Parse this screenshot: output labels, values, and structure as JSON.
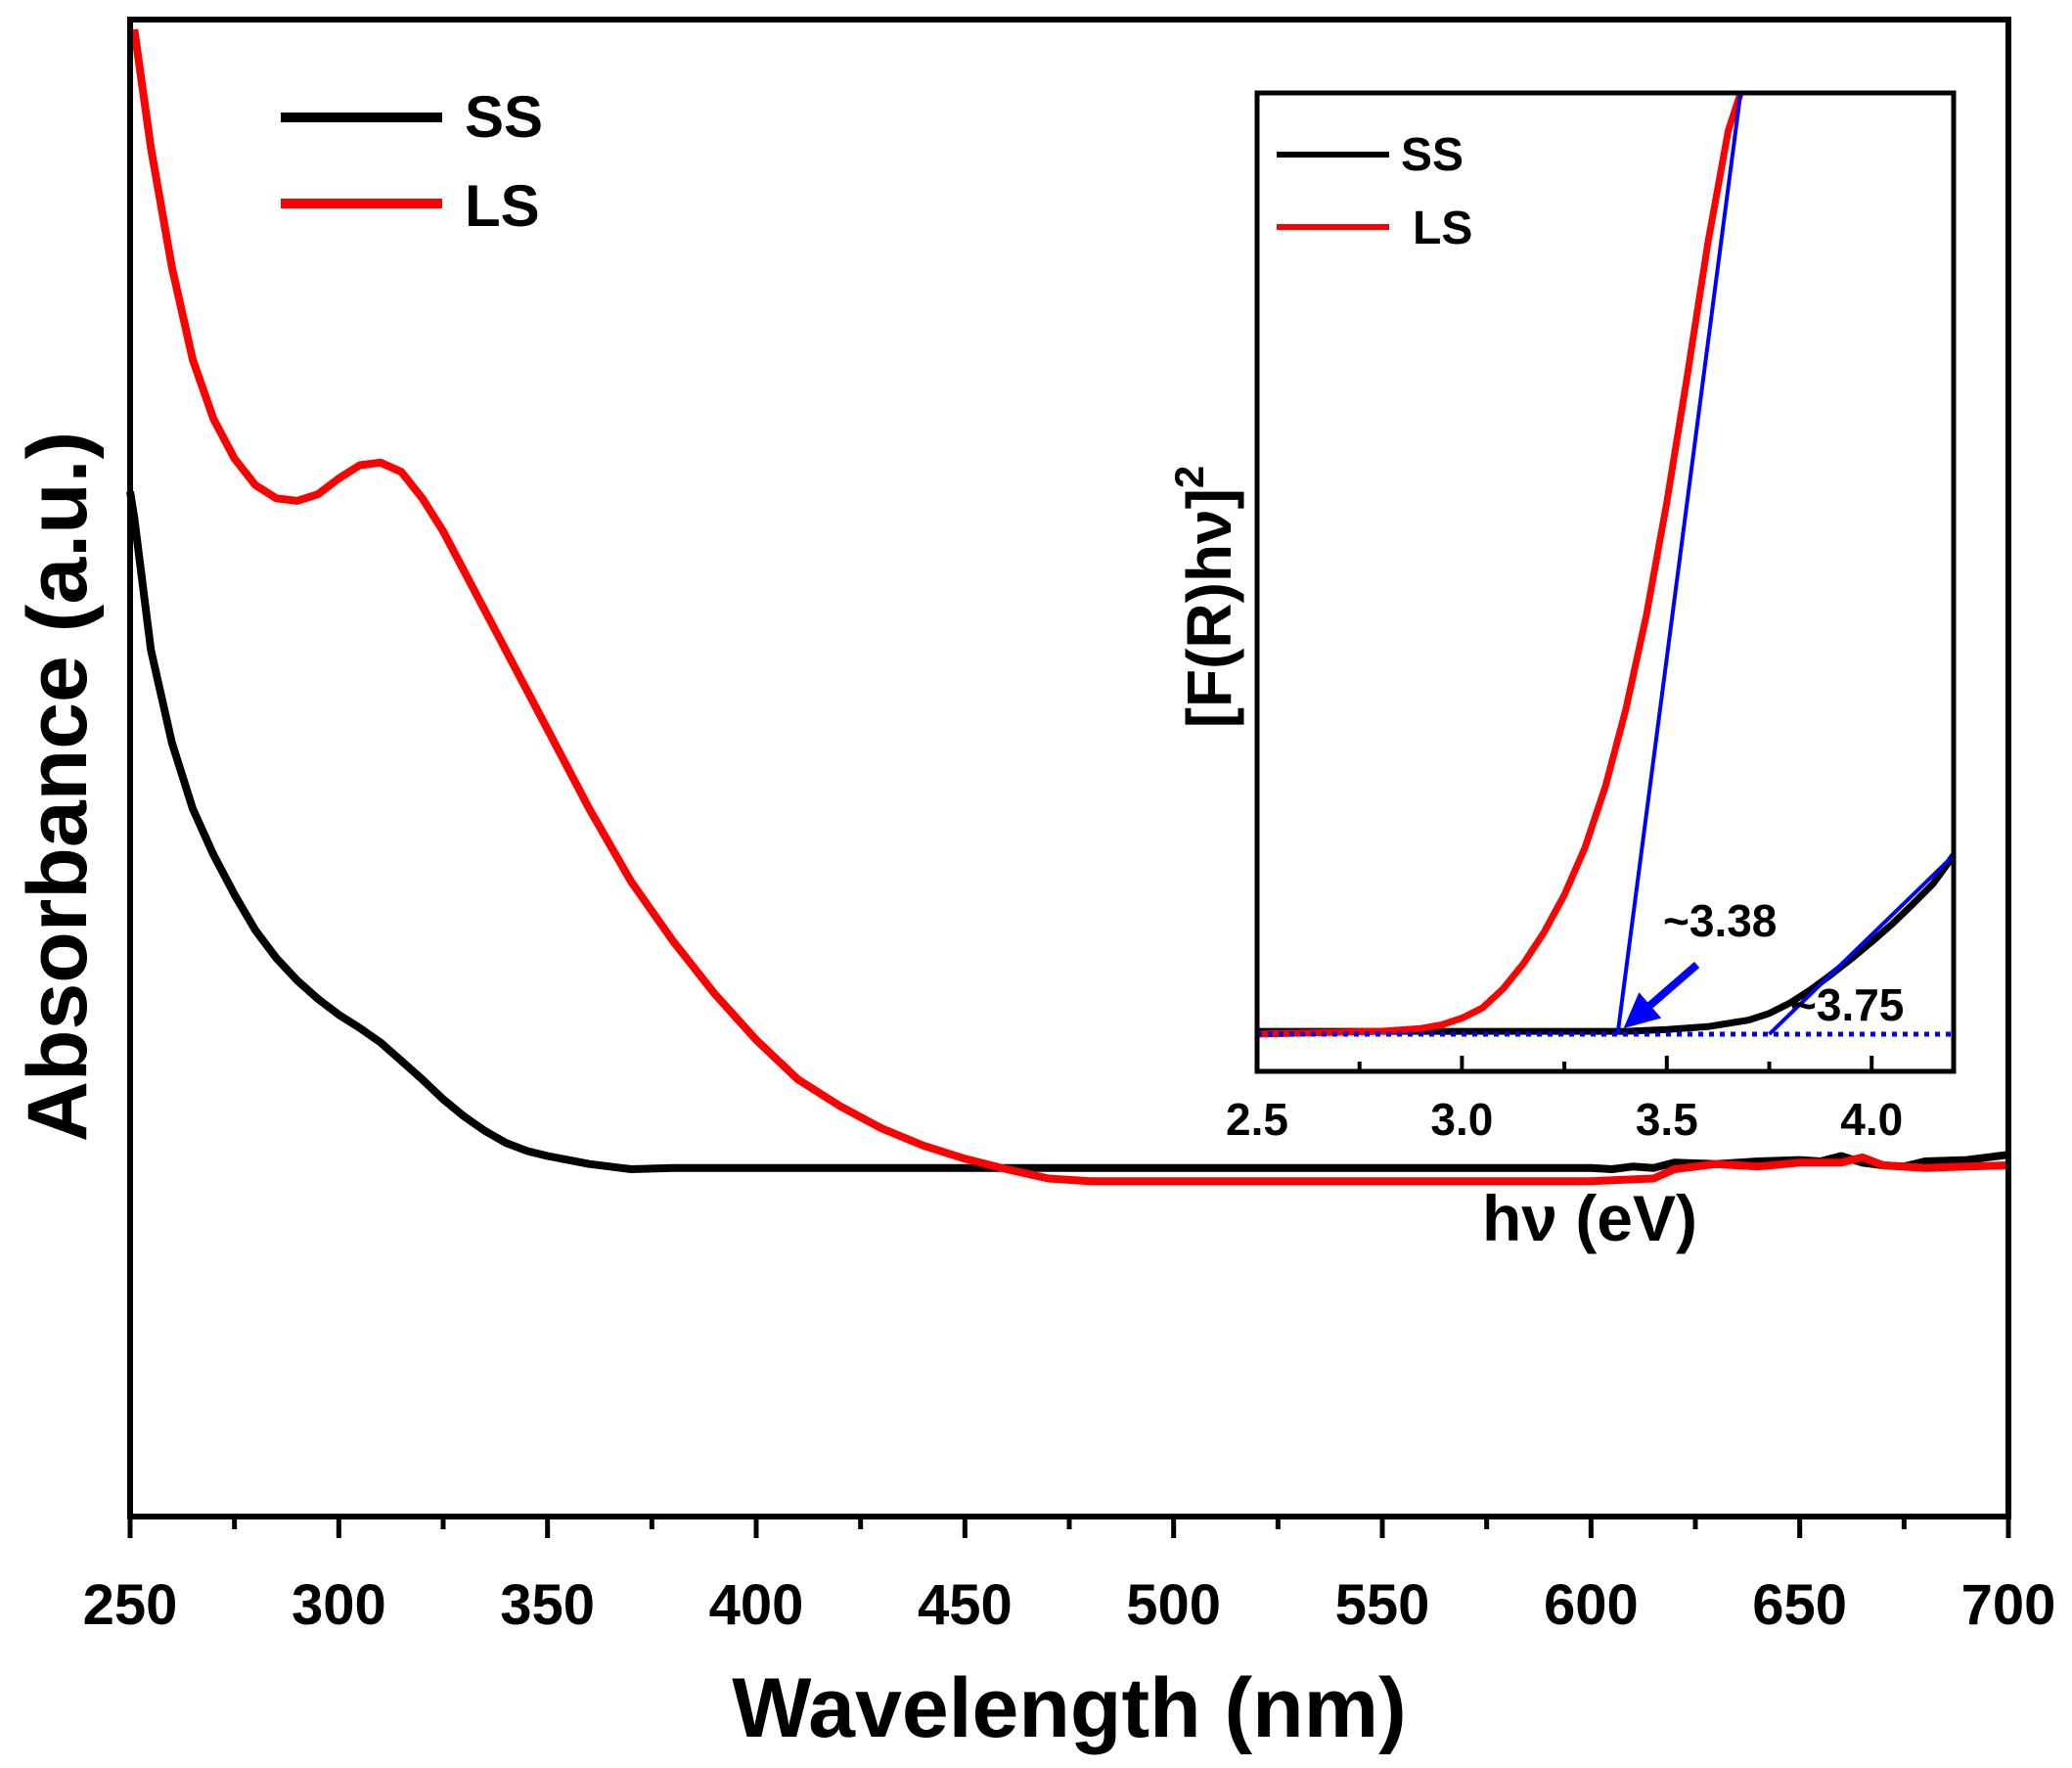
{
  "colors": {
    "ss": "#000000",
    "ls": "#ff0000",
    "fit": "#0000ff",
    "axis": "#000000",
    "background": "#ffffff"
  },
  "chart_data": [
    {
      "id": "main",
      "type": "line",
      "xlabel": "Wavelength (nm)",
      "ylabel": "Absorbance (a.u.)",
      "xlim": [
        250,
        700
      ],
      "ylim": [
        0,
        1.0
      ],
      "x_ticks": [
        250,
        300,
        350,
        400,
        450,
        500,
        550,
        600,
        650,
        700
      ],
      "y_tick_labels_shown": false,
      "legend": {
        "position": "top-left",
        "entries": [
          "SS",
          "LS"
        ]
      },
      "series": [
        {
          "name": "SS",
          "color": "#000000",
          "x": [
            250,
            251,
            255,
            260,
            265,
            270,
            275,
            280,
            285,
            290,
            295,
            300,
            305,
            310,
            315,
            320,
            325,
            330,
            335,
            340,
            345,
            350,
            355,
            360,
            365,
            370,
            380,
            400,
            450,
            500,
            550,
            600,
            605,
            610,
            615,
            620,
            630,
            640,
            650,
            655,
            660,
            665,
            670,
            675,
            680,
            690,
            700
          ],
          "y": [
            0.65,
            0.63,
            0.53,
            0.46,
            0.41,
            0.375,
            0.345,
            0.318,
            0.297,
            0.28,
            0.266,
            0.254,
            0.244,
            0.233,
            0.219,
            0.205,
            0.19,
            0.177,
            0.166,
            0.157,
            0.151,
            0.147,
            0.144,
            0.141,
            0.139,
            0.137,
            0.138,
            0.138,
            0.138,
            0.138,
            0.138,
            0.138,
            0.137,
            0.139,
            0.138,
            0.142,
            0.141,
            0.143,
            0.144,
            0.143,
            0.147,
            0.142,
            0.14,
            0.139,
            0.143,
            0.144,
            0.148
          ]
        },
        {
          "name": "LS",
          "color": "#ff0000",
          "x": [
            251,
            255,
            260,
            265,
            270,
            275,
            280,
            285,
            290,
            295,
            300,
            305,
            310,
            315,
            320,
            325,
            330,
            340,
            350,
            360,
            370,
            380,
            390,
            400,
            410,
            420,
            430,
            440,
            450,
            460,
            470,
            480,
            500,
            520,
            550,
            600,
            615,
            620,
            630,
            640,
            650,
            660,
            665,
            670,
            680,
            690,
            700
          ],
          "y": [
            1.0,
            0.91,
            0.82,
            0.75,
            0.705,
            0.675,
            0.655,
            0.645,
            0.643,
            0.648,
            0.66,
            0.67,
            0.672,
            0.665,
            0.645,
            0.62,
            0.59,
            0.53,
            0.47,
            0.41,
            0.355,
            0.31,
            0.27,
            0.235,
            0.205,
            0.185,
            0.168,
            0.155,
            0.145,
            0.137,
            0.13,
            0.128,
            0.128,
            0.128,
            0.128,
            0.128,
            0.13,
            0.137,
            0.141,
            0.139,
            0.142,
            0.142,
            0.146,
            0.14,
            0.138,
            0.139,
            0.14
          ]
        }
      ]
    },
    {
      "id": "inset",
      "type": "line",
      "xlabel": "hν (eV)",
      "ylabel": "[F(R)hν]",
      "ylabel_superscript": "2",
      "xlim": [
        2.5,
        4.2
      ],
      "ylim": [
        0,
        1.0
      ],
      "x_ticks": [
        2.5,
        3.0,
        3.5,
        4.0
      ],
      "x_tick_labels": [
        "2.5",
        "3.0",
        "3.5",
        "4.0"
      ],
      "y_tick_labels_shown": false,
      "legend": {
        "position": "top-left",
        "entries": [
          "SS",
          "LS"
        ]
      },
      "series": [
        {
          "name": "SS",
          "color": "#000000",
          "x": [
            2.5,
            3.0,
            3.3,
            3.4,
            3.5,
            3.6,
            3.7,
            3.75,
            3.8,
            3.85,
            3.9,
            3.95,
            4.0,
            4.05,
            4.1,
            4.15,
            4.2
          ],
          "y": [
            0.003,
            0.003,
            0.003,
            0.003,
            0.005,
            0.008,
            0.015,
            0.022,
            0.033,
            0.047,
            0.063,
            0.08,
            0.098,
            0.117,
            0.138,
            0.16,
            0.19
          ]
        },
        {
          "name": "LS",
          "color": "#ff0000",
          "x": [
            2.5,
            2.8,
            2.9,
            2.95,
            3.0,
            3.05,
            3.1,
            3.15,
            3.2,
            3.25,
            3.3,
            3.35,
            3.4,
            3.45,
            3.5,
            3.55,
            3.6,
            3.65,
            3.68
          ],
          "y": [
            0.0,
            0.003,
            0.006,
            0.01,
            0.017,
            0.028,
            0.048,
            0.075,
            0.108,
            0.148,
            0.198,
            0.263,
            0.345,
            0.445,
            0.565,
            0.7,
            0.84,
            0.96,
            1.0
          ]
        }
      ],
      "fit_lines": [
        {
          "name": "LS tangent",
          "x": [
            3.38,
            3.68
          ],
          "y": [
            0.0,
            1.0
          ]
        },
        {
          "name": "SS tangent",
          "x": [
            3.75,
            4.2
          ],
          "y": [
            0.0,
            0.19
          ]
        }
      ],
      "baseline": {
        "y": 0.0,
        "style": "dotted"
      },
      "annotations": [
        {
          "text": "~3.38",
          "x": 3.38,
          "arrow": true
        },
        {
          "text": "~3.75",
          "x": 3.75,
          "arrow": false
        }
      ]
    }
  ]
}
